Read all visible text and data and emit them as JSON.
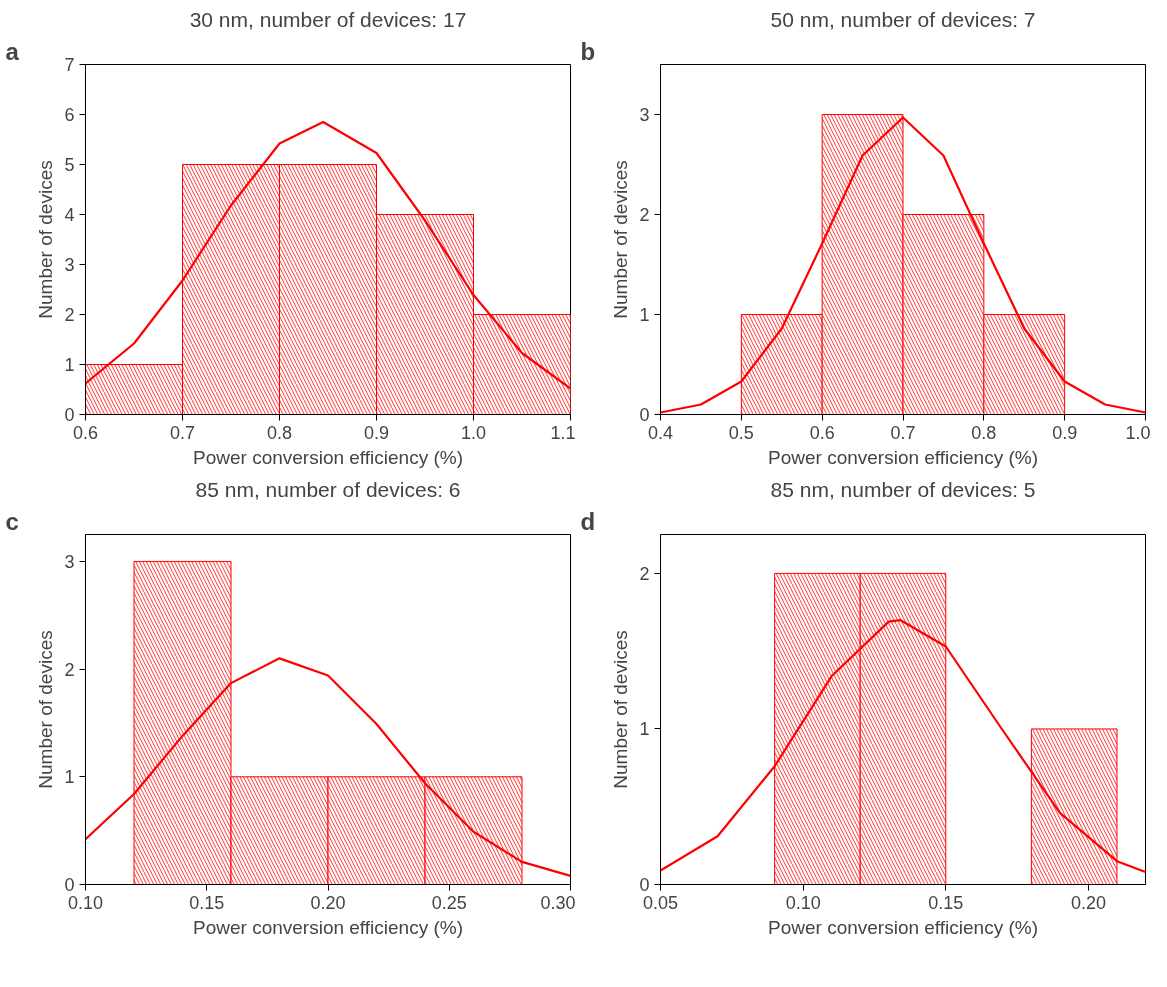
{
  "chart_data": [
    {
      "type": "histogram",
      "title": "30 nm, number of devices: 17",
      "xlabel": "Power conversion efficiency (%)",
      "ylabel": "Number of devices",
      "annotations": [
        "a"
      ],
      "xlim": [
        0.6,
        1.1
      ],
      "ylim": [
        0,
        7
      ],
      "xticks": [
        0.6,
        0.7,
        0.8,
        0.9,
        {
          "value": 1.0,
          "label": "1.0"
        },
        1.1
      ],
      "yticks": [
        0,
        1,
        2,
        3,
        4,
        5,
        6,
        7
      ],
      "grid": false,
      "series": [
        {
          "color": "#ff0000",
          "bins": [
            0.6,
            0.7,
            0.8,
            0.9,
            1.0,
            1.1
          ],
          "values": [
            1,
            5,
            5,
            4,
            2
          ]
        },
        {
          "type": "line",
          "color": "#ff0000",
          "x": [
            0.6,
            0.65,
            0.7,
            0.75,
            0.8,
            0.845,
            0.9,
            0.95,
            1.0,
            1.05,
            1.1
          ],
          "values": [
            0.62,
            1.42,
            2.68,
            4.18,
            5.42,
            5.85,
            5.23,
            3.88,
            2.39,
            1.23,
            0.52
          ]
        }
      ]
    },
    {
      "type": "histogram",
      "title": "50 nm, number of devices: 7",
      "xlabel": "Power conversion efficiency (%)",
      "ylabel": "Number of devices",
      "annotations": [
        "b"
      ],
      "xlim": [
        0.4,
        1.0
      ],
      "ylim": [
        0,
        3.5
      ],
      "xticks": [
        0.4,
        0.5,
        0.6,
        0.7,
        0.8,
        0.9,
        {
          "value": 1.0,
          "label": "1.0"
        }
      ],
      "yticks": [
        0,
        1,
        2,
        3
      ],
      "grid": false,
      "series": [
        {
          "color": "#ff0000",
          "bins": [
            0.5,
            0.6,
            0.7,
            0.8,
            0.9
          ],
          "values": [
            1,
            3,
            2,
            1
          ]
        },
        {
          "type": "line",
          "color": "#ff0000",
          "x": [
            0.4,
            0.45,
            0.5,
            0.55,
            0.6,
            0.65,
            0.7,
            0.75,
            0.8,
            0.85,
            0.9,
            0.95,
            1.0
          ],
          "values": [
            0.02,
            0.1,
            0.33,
            0.86,
            1.71,
            2.59,
            2.97,
            2.59,
            1.71,
            0.86,
            0.33,
            0.1,
            0.02
          ]
        }
      ]
    },
    {
      "type": "histogram",
      "title": "85 nm, number of devices: 6",
      "xlabel": "Power conversion efficiency (%)",
      "ylabel": "Number of devices",
      "annotations": [
        "c"
      ],
      "xlim": [
        0.1,
        0.3
      ],
      "ylim": [
        0,
        3.25
      ],
      "xticks": [
        {
          "value": 0.1,
          "label": "0.10"
        },
        0.15,
        {
          "value": 0.2,
          "label": "0.20"
        },
        0.25,
        {
          "value": 0.3,
          "label": "0.30"
        }
      ],
      "yticks": [
        0,
        1,
        2,
        3
      ],
      "grid": false,
      "series": [
        {
          "color": "#ff0000",
          "bins": [
            0.12,
            0.16,
            0.2,
            0.24,
            0.28
          ],
          "values": [
            3,
            1,
            1,
            1
          ]
        },
        {
          "type": "line",
          "color": "#ff0000",
          "x": [
            0.1,
            0.12,
            0.14,
            0.16,
            0.18,
            0.2,
            0.22,
            0.24,
            0.26,
            0.28,
            0.3
          ],
          "values": [
            0.42,
            0.84,
            1.38,
            1.87,
            2.1,
            1.94,
            1.49,
            0.94,
            0.49,
            0.21,
            0.08
          ]
        }
      ]
    },
    {
      "type": "histogram",
      "title": "85 nm, number of devices: 5",
      "xlabel": "Power conversion efficiency (%)",
      "ylabel": "Number of devices",
      "annotations": [
        "d"
      ],
      "xlim": [
        0.05,
        0.22
      ],
      "ylim": [
        0,
        2.25
      ],
      "xticks": [
        0.05,
        {
          "value": 0.1,
          "label": "0.10"
        },
        0.15,
        {
          "value": 0.2,
          "label": "0.20"
        }
      ],
      "yticks": [
        0,
        1,
        2
      ],
      "grid": false,
      "series": [
        {
          "color": "#ff0000",
          "bins": [
            0.09,
            0.12,
            0.15,
            0.18,
            0.21
          ],
          "values": [
            2,
            2,
            0,
            1
          ]
        },
        {
          "type": "line",
          "color": "#ff0000",
          "x": [
            0.05,
            0.07,
            0.09,
            0.11,
            0.13,
            0.134,
            0.15,
            0.17,
            0.19,
            0.21,
            0.22
          ],
          "values": [
            0.09,
            0.31,
            0.76,
            1.34,
            1.69,
            1.7,
            1.53,
            0.99,
            0.46,
            0.15,
            0.08
          ]
        }
      ]
    }
  ]
}
